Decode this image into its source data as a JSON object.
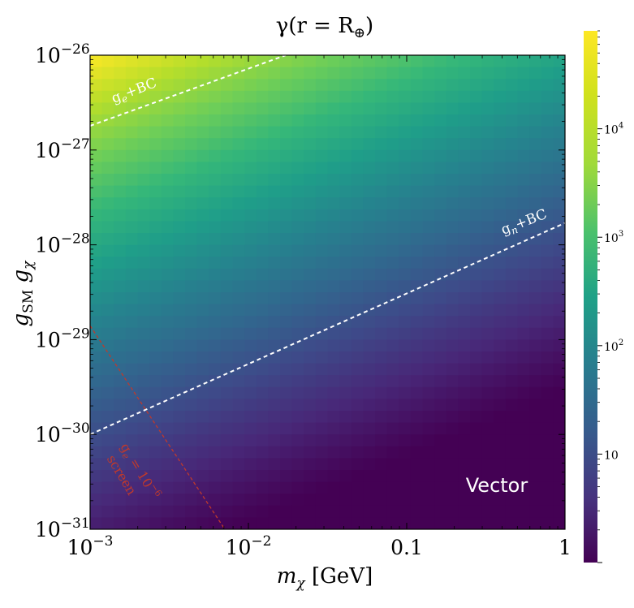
{
  "chart_data": {
    "type": "heatmap",
    "title": "γ(r = R",
    "title_sub": "⊕",
    "title_close": ")",
    "xlabel": "m",
    "xlabel_sub": "χ",
    "xlabel_unit": "[GeV]",
    "ylabel": "g",
    "ylabel_sub": "SM",
    "ylabel_2": "g",
    "ylabel_2_sub": "χ",
    "x_scale": "log",
    "y_scale": "log",
    "xlim": [
      0.001,
      1
    ],
    "ylim": [
      1e-31,
      1e-26
    ],
    "x_ticks": [
      {
        "value": 0.001,
        "base": "10",
        "exp": "−3"
      },
      {
        "value": 0.01,
        "base": "10",
        "exp": "−2"
      },
      {
        "value": 0.1,
        "label": "0.1"
      },
      {
        "value": 1,
        "label": "1"
      }
    ],
    "y_ticks": [
      {
        "value": 1e-31,
        "base": "10",
        "exp": "−31"
      },
      {
        "value": 1e-30,
        "base": "10",
        "exp": "−30"
      },
      {
        "value": 1e-29,
        "base": "10",
        "exp": "−29"
      },
      {
        "value": 1e-28,
        "base": "10",
        "exp": "−28"
      },
      {
        "value": 1e-27,
        "base": "10",
        "exp": "−27"
      },
      {
        "value": 1e-26,
        "base": "10",
        "exp": "−26"
      }
    ],
    "colorbar": {
      "scale": "log",
      "colormap": "viridis",
      "range": [
        1,
        80000
      ],
      "ticks": [
        {
          "value": 10,
          "label": "10"
        },
        {
          "value": 100,
          "base": "10",
          "exp": "2"
        },
        {
          "value": 1000,
          "base": "10",
          "exp": "3"
        },
        {
          "value": 10000,
          "base": "10",
          "exp": "4"
        }
      ]
    },
    "lines": [
      {
        "name_main": "g",
        "name_sub": "e",
        "name_rest": "+BC",
        "style": "dashed",
        "color": "#ffffff",
        "points": [
          [
            0.001,
            1.8e-27
          ],
          [
            0.0172,
            1e-26
          ]
        ]
      },
      {
        "name_main": "g",
        "name_sub": "n",
        "name_rest": "+BC",
        "style": "dashed",
        "color": "#ffffff",
        "points": [
          [
            0.001,
            1e-30
          ],
          [
            1,
            1.7e-28
          ]
        ]
      },
      {
        "name_main": "g",
        "name_sub": "e",
        "name_rest": " = 10",
        "name_sup": "−6",
        "name_line2": "screen",
        "style": "dashed",
        "color": "#c0392b",
        "points": [
          [
            0.001,
            1.4e-29
          ],
          [
            0.0071,
            1e-31
          ]
        ]
      }
    ],
    "annotation": "Vector"
  }
}
